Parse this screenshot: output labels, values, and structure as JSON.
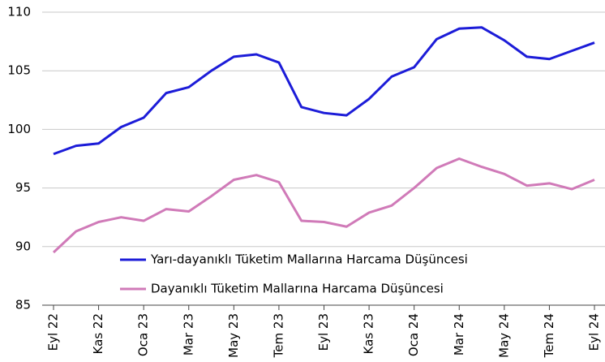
{
  "chart_data": {
    "type": "line",
    "categories": [
      "Eyl 22",
      null,
      "Kas 22",
      null,
      "Oca 23",
      null,
      "Mar 23",
      null,
      "May 23",
      null,
      "Tem 23",
      null,
      "Eyl 23",
      null,
      "Kas 23",
      null,
      "Oca 24",
      null,
      "Mar 24",
      null,
      "May 24",
      null,
      "Tem 24",
      null,
      "Eyl 24"
    ],
    "series": [
      {
        "name": "Yarı-dayanıklı Tüketim Mallarına Harcama Düşüncesi",
        "color": "#1c1cd8",
        "values": [
          97.9,
          98.6,
          98.8,
          100.2,
          101.0,
          103.1,
          103.6,
          105.0,
          106.2,
          106.4,
          105.7,
          101.9,
          101.4,
          101.2,
          102.6,
          104.5,
          105.3,
          107.7,
          108.6,
          108.7,
          107.6,
          106.2,
          106.0,
          106.7,
          107.4
        ]
      },
      {
        "name": "Dayanıklı Tüketim Mallarına Harcama Düşüncesi",
        "color": "#d07ab8",
        "values": [
          89.5,
          91.3,
          92.1,
          92.5,
          92.2,
          93.2,
          93.0,
          94.3,
          95.7,
          96.1,
          95.5,
          92.2,
          92.1,
          91.7,
          92.9,
          93.5,
          95.0,
          96.7,
          97.5,
          96.8,
          96.2,
          95.2,
          95.4,
          94.9,
          95.7
        ]
      }
    ],
    "ylim": [
      85,
      110
    ],
    "yticks": [
      85,
      90,
      95,
      100,
      105,
      110
    ],
    "grid": true
  }
}
